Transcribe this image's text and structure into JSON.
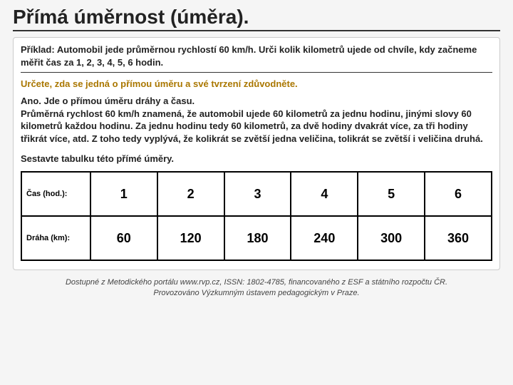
{
  "title": "Přímá úměrnost (úměra).",
  "problem": "Příklad: Automobil jede průměrnou rychlostí 60 km/h. Urči kolik kilometrů ujede od chvíle, kdy začneme měřit čas za 1, 2, 3, 4, 5, 6 hodin.",
  "instruction": "Určete, zda se jedná o přímou úměru a své tvrzení zdůvodněte.",
  "explanation_line1": "Ano. Jde o přímou úměru dráhy a času.",
  "explanation_line2": "Průměrná rychlost 60 km/h znamená, že automobil ujede 60 kilometrů za jednu hodinu, jinými slovy 60 kilometrů každou hodinu. Za jednu hodinu tedy 60 kilometrů, za dvě hodiny dvakrát více, za tři hodiny třikrát více, atd. Z toho tedy vyplývá, že kolikrát se zvětší jedna veličina, tolikrát se zvětší i veličina druhá.",
  "task": "Sestavte tabulku této přímé úměry.",
  "table": {
    "row1_label": "Čas (hod.):",
    "row1": [
      "1",
      "2",
      "3",
      "4",
      "5",
      "6"
    ],
    "row2_label": "Dráha (km):",
    "row2": [
      "60",
      "120",
      "180",
      "240",
      "300",
      "360"
    ]
  },
  "footer_line1": "Dostupné z Metodického portálu www.rvp.cz, ISSN: 1802-4785, financovaného z ESF a státního rozpočtu ČR.",
  "footer_line2": "Provozováno Výzkumným ústavem pedagogickým v Praze.",
  "colors": {
    "instruction_color": "#aa7700",
    "border_color": "#000000",
    "background": "#ffffff"
  }
}
